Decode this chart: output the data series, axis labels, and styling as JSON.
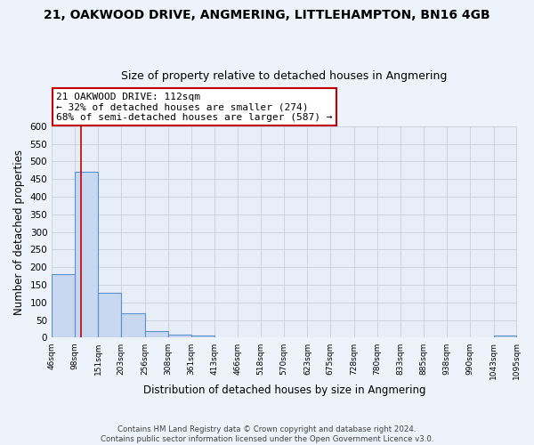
{
  "title1": "21, OAKWOOD DRIVE, ANGMERING, LITTLEHAMPTON, BN16 4GB",
  "title2": "Size of property relative to detached houses in Angmering",
  "xlabel": "Distribution of detached houses by size in Angmering",
  "ylabel": "Number of detached properties",
  "bin_edges": [
    46,
    98,
    151,
    203,
    256,
    308,
    361,
    413,
    466,
    518,
    570,
    623,
    675,
    728,
    780,
    833,
    885,
    938,
    990,
    1043,
    1095
  ],
  "bar_heights": [
    180,
    470,
    127,
    70,
    20,
    8,
    5,
    0,
    0,
    0,
    0,
    0,
    0,
    0,
    0,
    0,
    0,
    0,
    0,
    5
  ],
  "bar_color": "#c8d8f0",
  "bar_edge_color": "#5b8fd4",
  "property_line_x": 112,
  "property_line_color": "#c00000",
  "annotation_title": "21 OAKWOOD DRIVE: 112sqm",
  "annotation_line1": "← 32% of detached houses are smaller (274)",
  "annotation_line2": "68% of semi-detached houses are larger (587) →",
  "annotation_box_edge_color": "#c00000",
  "annotation_box_face_color": "#ffffff",
  "ylim": [
    0,
    600
  ],
  "yticks": [
    0,
    50,
    100,
    150,
    200,
    250,
    300,
    350,
    400,
    450,
    500,
    550,
    600
  ],
  "xtick_labels": [
    "46sqm",
    "98sqm",
    "151sqm",
    "203sqm",
    "256sqm",
    "308sqm",
    "361sqm",
    "413sqm",
    "466sqm",
    "518sqm",
    "570sqm",
    "623sqm",
    "675sqm",
    "728sqm",
    "780sqm",
    "833sqm",
    "885sqm",
    "938sqm",
    "990sqm",
    "1043sqm",
    "1095sqm"
  ],
  "footer_line1": "Contains HM Land Registry data © Crown copyright and database right 2024.",
  "footer_line2": "Contains public sector information licensed under the Open Government Licence v3.0.",
  "bg_color": "#eef3fb",
  "plot_bg_color": "#e8eef8",
  "grid_color": "#c8d0dc",
  "title1_fontsize": 10,
  "title2_fontsize": 9
}
